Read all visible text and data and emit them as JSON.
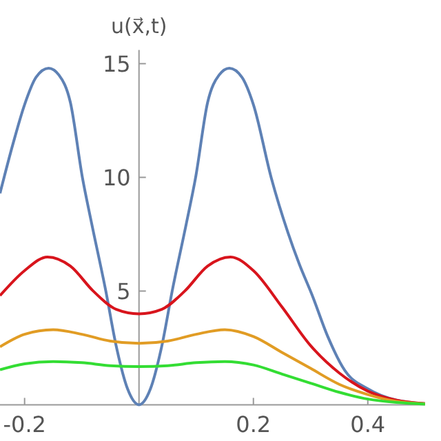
{
  "chart_data": {
    "type": "line",
    "ylabel": "u(x⃗,t)",
    "xlim": [
      -0.243,
      0.5
    ],
    "ylim": [
      0,
      15.6
    ],
    "xticks": [
      -0.2,
      0.2,
      0.4
    ],
    "yticks": [
      5,
      10,
      15
    ],
    "grid": false,
    "marker": "none",
    "line_style": "solid",
    "series": [
      {
        "color": "#5e81b5",
        "x": [
          -0.243,
          -0.22,
          -0.2,
          -0.18,
          -0.158,
          -0.14,
          -0.12,
          -0.099,
          -0.083,
          -0.058,
          -0.04,
          -0.02,
          0,
          0.02,
          0.04,
          0.058,
          0.083,
          0.099,
          0.12,
          0.14,
          0.158,
          0.18,
          0.2,
          0.231,
          0.26,
          0.28,
          0.303,
          0.33,
          0.36,
          0.4,
          0.45,
          0.5
        ],
        "values": [
          9.3,
          11.5,
          13.2,
          14.4,
          14.8,
          14.5,
          13.3,
          10,
          8,
          5,
          2.6,
          0.7,
          0,
          0.7,
          2.6,
          5,
          8,
          10,
          13.3,
          14.5,
          14.8,
          14.4,
          13.2,
          10,
          7.6,
          6.2,
          4.8,
          3,
          1.5,
          0.7,
          0.2,
          0.05
        ]
      },
      {
        "color": "#d8141c",
        "x": [
          -0.243,
          -0.2,
          -0.16,
          -0.12,
          -0.08,
          -0.04,
          0,
          0.04,
          0.08,
          0.12,
          0.16,
          0.2,
          0.25,
          0.3,
          0.35,
          0.4,
          0.45,
          0.5
        ],
        "values": [
          4.8,
          5.9,
          6.5,
          6.1,
          5,
          4.2,
          4,
          4.2,
          5,
          6.1,
          6.5,
          5.9,
          4.3,
          2.6,
          1.4,
          0.6,
          0.2,
          0.05
        ]
      },
      {
        "color": "#e19c24",
        "x": [
          -0.243,
          -0.2,
          -0.15,
          -0.1,
          -0.05,
          0,
          0.05,
          0.1,
          0.15,
          0.2,
          0.25,
          0.3,
          0.35,
          0.4,
          0.45,
          0.5
        ],
        "values": [
          2.55,
          3.1,
          3.3,
          3.1,
          2.8,
          2.7,
          2.8,
          3.1,
          3.3,
          3,
          2.3,
          1.6,
          0.9,
          0.45,
          0.15,
          0.04
        ]
      },
      {
        "color": "#33dd33",
        "x": [
          -0.243,
          -0.2,
          -0.15,
          -0.1,
          -0.05,
          0,
          0.05,
          0.1,
          0.15,
          0.2,
          0.25,
          0.3,
          0.35,
          0.4,
          0.45,
          0.5
        ],
        "values": [
          1.54,
          1.8,
          1.9,
          1.85,
          1.72,
          1.68,
          1.72,
          1.85,
          1.9,
          1.75,
          1.35,
          0.95,
          0.55,
          0.25,
          0.1,
          0.03
        ]
      }
    ]
  }
}
